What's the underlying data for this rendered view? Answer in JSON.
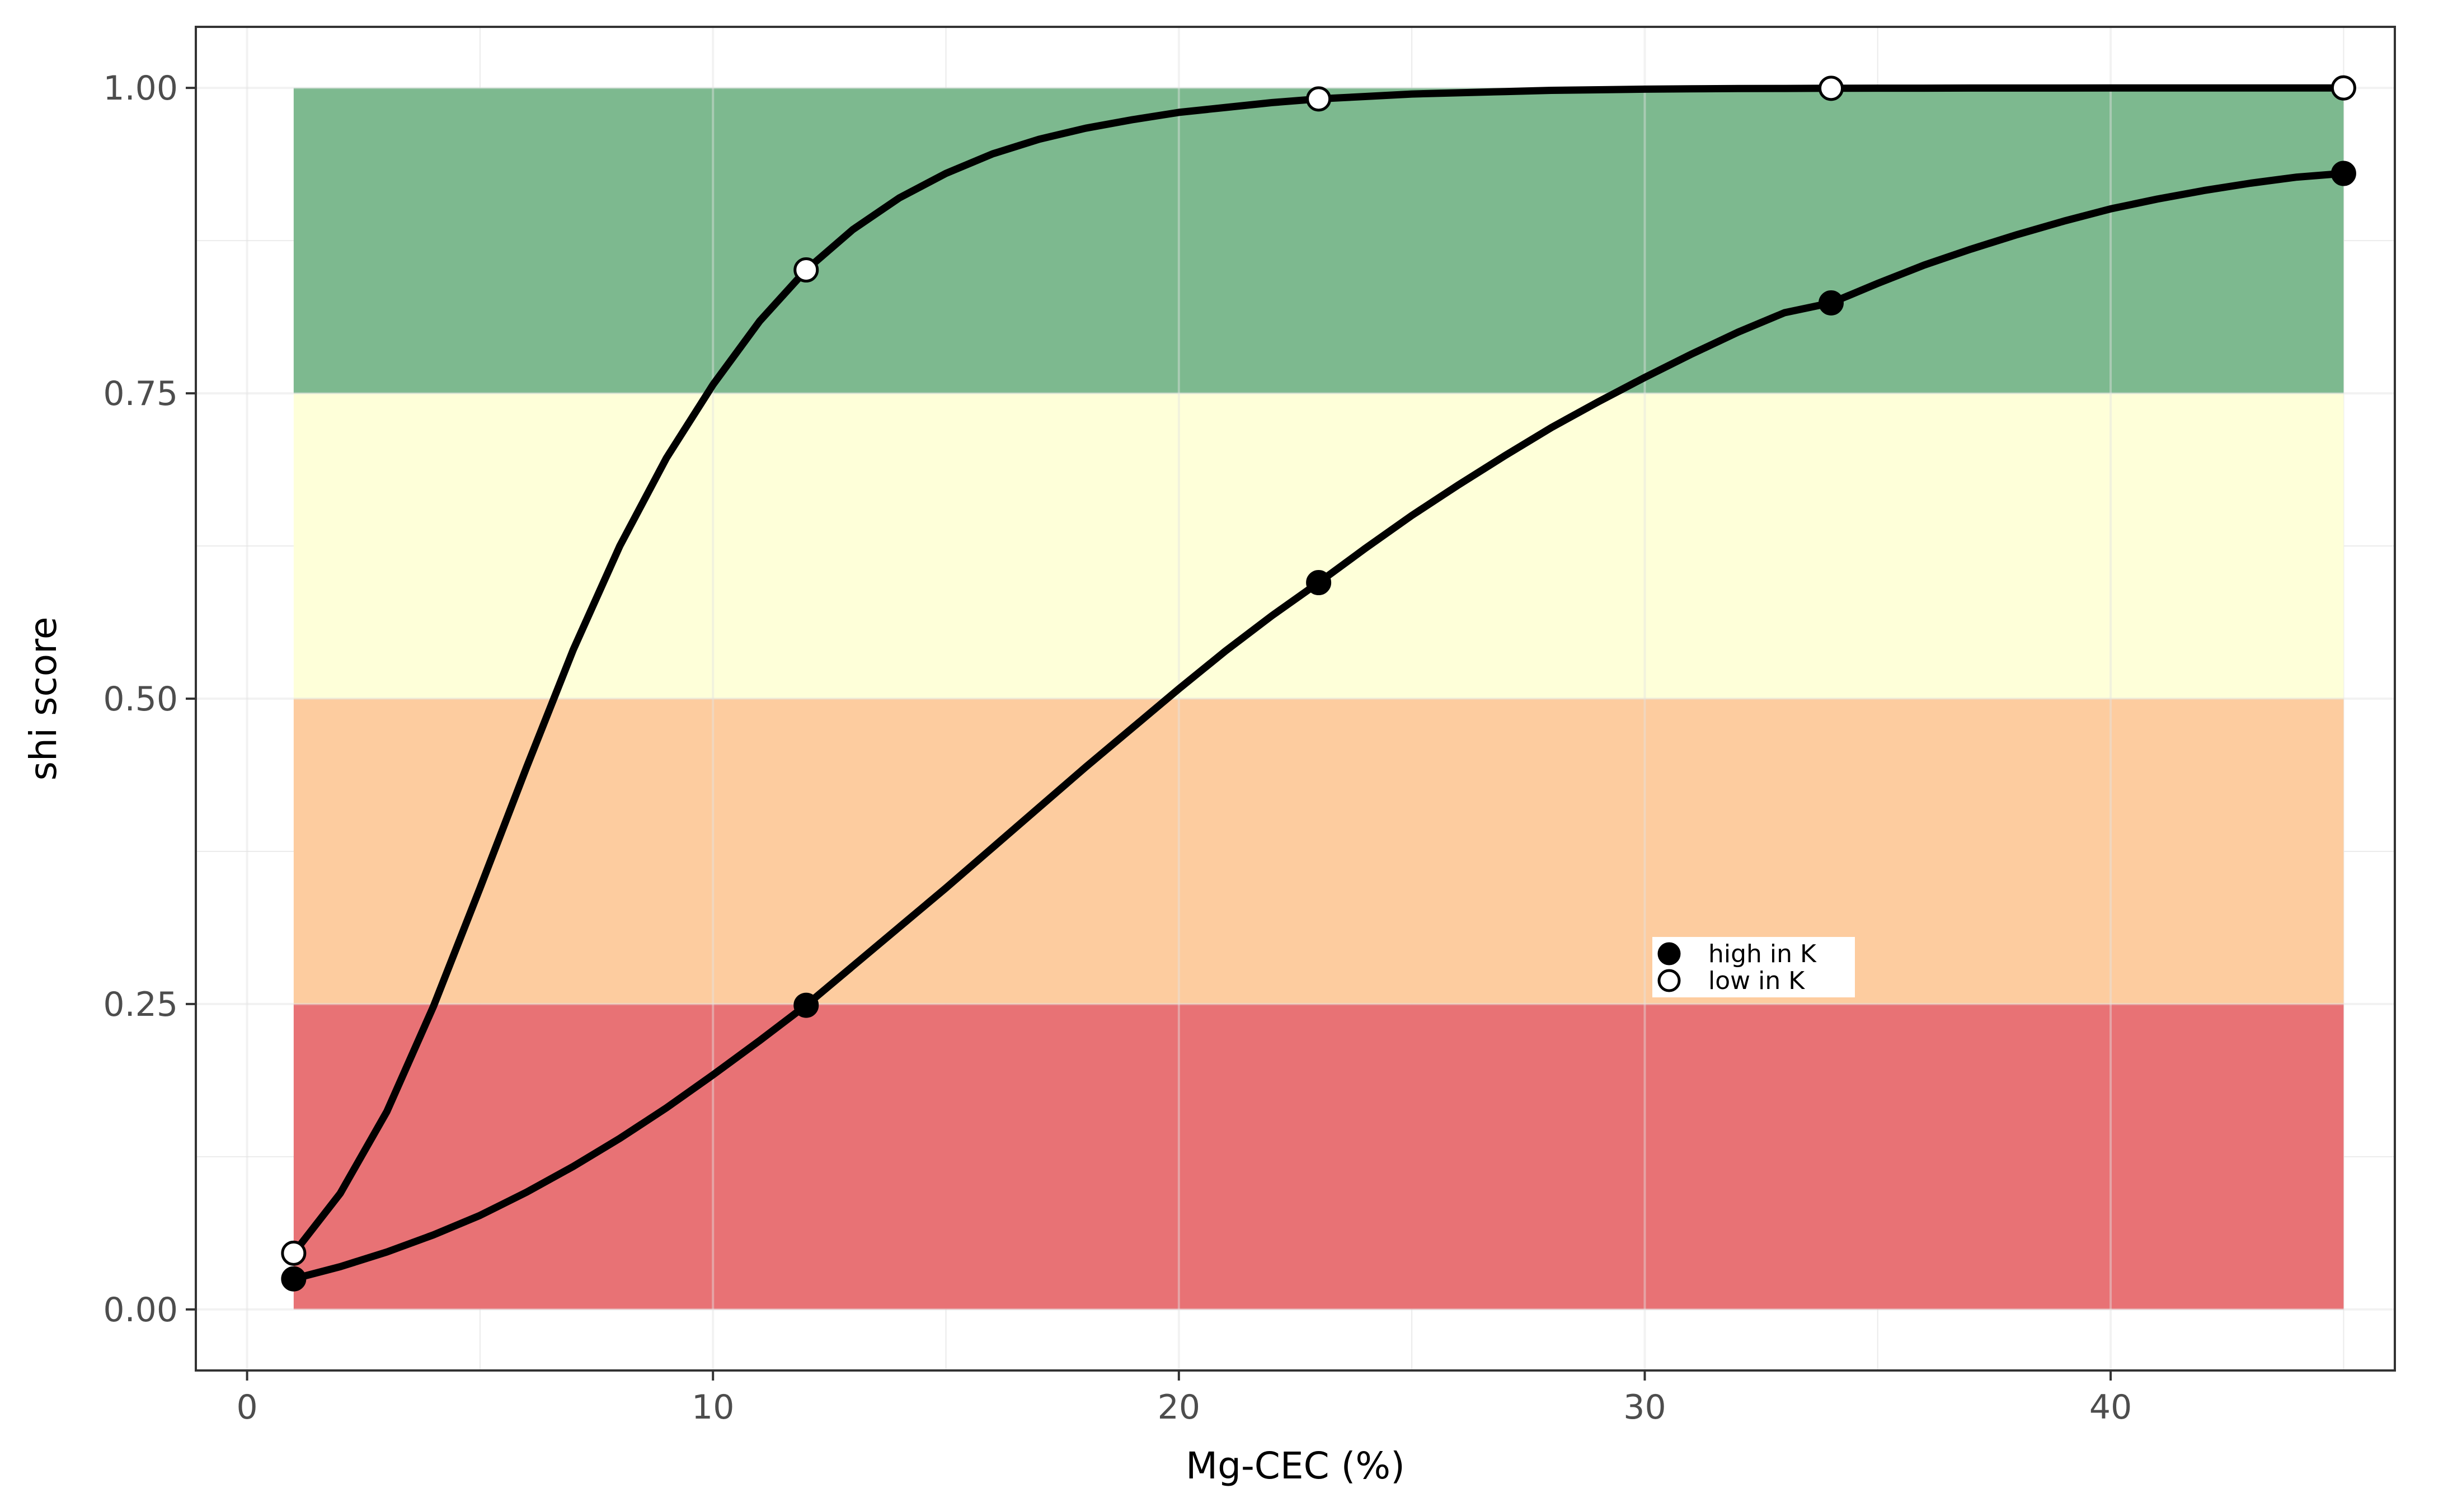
{
  "chart_data": {
    "type": "line",
    "title": "",
    "xlabel": "Mg-CEC (%)",
    "ylabel": "shi score",
    "xlim": [
      -1.1,
      46.1
    ],
    "ylim": [
      -0.05,
      1.05
    ],
    "x_ticks": [
      0,
      10,
      20,
      30,
      40
    ],
    "x_tick_labels": [
      "0",
      "10",
      "20",
      "30",
      "40"
    ],
    "y_ticks": [
      0,
      0.25,
      0.5,
      0.75,
      1.0
    ],
    "y_tick_labels": [
      "0.00",
      "0.25",
      "0.50",
      "0.75",
      "1.00"
    ],
    "grid": true,
    "legend_position": "inside-bottom-right",
    "bands": [
      {
        "ymin": 0.0,
        "ymax": 0.25,
        "xmin": 1,
        "xmax": 45,
        "color": "#e87275"
      },
      {
        "ymin": 0.25,
        "ymax": 0.5,
        "xmin": 1,
        "xmax": 45,
        "color": "#fdcc9f"
      },
      {
        "ymin": 0.5,
        "ymax": 0.75,
        "xmin": 1,
        "xmax": 45,
        "color": "#feffd9"
      },
      {
        "ymin": 0.75,
        "ymax": 1.0,
        "xmin": 1,
        "xmax": 45,
        "color": "#7db98f"
      }
    ],
    "series": [
      {
        "name": "high in K",
        "marker": "filled",
        "color": "#000000",
        "curve_x": [
          1,
          2,
          3,
          4,
          5,
          6,
          7,
          8,
          9,
          10,
          11,
          12,
          13,
          14,
          15,
          16,
          17,
          18,
          19,
          20,
          21,
          22,
          23,
          24,
          25,
          26,
          27,
          28,
          29,
          30,
          31,
          32,
          33,
          34,
          35,
          36,
          37,
          38,
          39,
          40,
          41,
          42,
          43,
          44,
          45
        ],
        "curve_y": [
          0.025,
          0.035,
          0.047,
          0.061,
          0.077,
          0.096,
          0.117,
          0.14,
          0.165,
          0.192,
          0.22,
          0.249,
          0.281,
          0.313,
          0.345,
          0.378,
          0.411,
          0.444,
          0.476,
          0.508,
          0.539,
          0.568,
          0.595,
          0.623,
          0.65,
          0.675,
          0.699,
          0.722,
          0.743,
          0.763,
          0.782,
          0.8,
          0.816,
          0.824,
          0.84,
          0.855,
          0.868,
          0.88,
          0.891,
          0.901,
          0.909,
          0.916,
          0.922,
          0.927,
          0.93
        ],
        "points_x": [
          1,
          12,
          23,
          34,
          45
        ],
        "points_y": [
          0.025,
          0.249,
          0.595,
          0.824,
          0.93
        ]
      },
      {
        "name": "low in K",
        "marker": "open",
        "color": "#000000",
        "curve_x": [
          1,
          2,
          3,
          4,
          5,
          6,
          7,
          8,
          9,
          10,
          11,
          12,
          13,
          14,
          15,
          16,
          17,
          18,
          19,
          20,
          21,
          22,
          23,
          24,
          25,
          26,
          27,
          28,
          29,
          30,
          31,
          32,
          33,
          34,
          35,
          36,
          37,
          38,
          39,
          40,
          41,
          42,
          43,
          44,
          45
        ],
        "curve_y": [
          0.046,
          0.095,
          0.162,
          0.248,
          0.345,
          0.444,
          0.54,
          0.625,
          0.697,
          0.757,
          0.809,
          0.851,
          0.884,
          0.91,
          0.93,
          0.946,
          0.958,
          0.967,
          0.974,
          0.98,
          0.984,
          0.988,
          0.991,
          0.993,
          0.995,
          0.996,
          0.997,
          0.998,
          0.9985,
          0.999,
          0.9993,
          0.9995,
          0.9996,
          0.9997,
          0.9998,
          0.9998,
          0.9999,
          0.9999,
          0.9999,
          1.0,
          1.0,
          1.0,
          1.0,
          1.0,
          1.0
        ],
        "points_x": [
          1,
          12,
          23,
          34,
          45
        ],
        "points_y": [
          0.046,
          0.851,
          0.991,
          0.9997,
          1.0
        ]
      }
    ]
  }
}
